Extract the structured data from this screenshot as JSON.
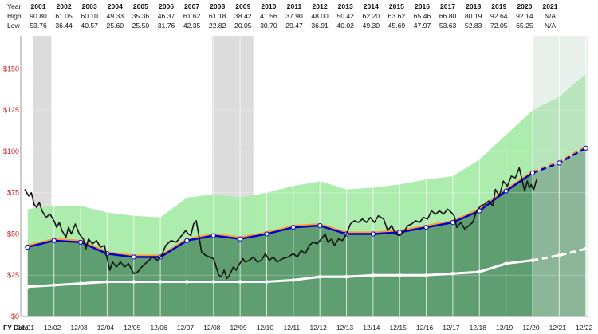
{
  "table": {
    "row_labels": [
      "Year",
      "High",
      "Low"
    ],
    "years": [
      "2001",
      "2002",
      "2003",
      "2004",
      "2005",
      "2006",
      "2007",
      "2008",
      "2009",
      "2010",
      "2011",
      "2012",
      "2013",
      "2014",
      "2015",
      "2016",
      "2017",
      "2018",
      "2019",
      "2020",
      "2021"
    ],
    "high": [
      "90.80",
      "61.05",
      "60.10",
      "49.33",
      "35.36",
      "46.37",
      "61.62",
      "61.18",
      "38.42",
      "41.56",
      "37.90",
      "48.00",
      "50.42",
      "62.20",
      "63.62",
      "65.46",
      "66.80",
      "80.19",
      "92.64",
      "92.14",
      "N/A"
    ],
    "low": [
      "53.76",
      "36.44",
      "40.57",
      "25.60",
      "25.50",
      "31.76",
      "42.35",
      "22.82",
      "20.05",
      "30.70",
      "29.47",
      "36.91",
      "40.02",
      "49.30",
      "45.69",
      "47.97",
      "53.63",
      "52.83",
      "72.05",
      "65.25",
      "N/A"
    ]
  },
  "chart_data": {
    "type": "line",
    "xlabel": "FY Date",
    "categories": [
      "12/01",
      "12/02",
      "12/03",
      "12/04",
      "12/05",
      "12/06",
      "12/07",
      "12/08",
      "12/09",
      "12/10",
      "12/11",
      "12/12",
      "12/13",
      "12/14",
      "12/15",
      "12/16",
      "12/17",
      "12/18",
      "12/19",
      "12/20",
      "12/21",
      "12/22"
    ],
    "yticks": [
      "$0",
      "$25",
      "$50",
      "$75",
      "$100",
      "$125",
      "$150"
    ],
    "ylim": [
      0,
      170
    ],
    "recession_shading": [
      [
        "2001.2",
        "2001.9"
      ],
      [
        "2007.95",
        "2009.5"
      ]
    ],
    "forecast_start": "2020.0",
    "normal_value": [
      [
        2001.0,
        42
      ],
      [
        2002.0,
        46
      ],
      [
        2003.0,
        45
      ],
      [
        2004.0,
        38
      ],
      [
        2005.0,
        36
      ],
      [
        2006.0,
        36
      ],
      [
        2007.0,
        46
      ],
      [
        2008.0,
        49
      ],
      [
        2009.0,
        47
      ],
      [
        2010.0,
        50
      ],
      [
        2011.0,
        54
      ],
      [
        2012.0,
        55
      ],
      [
        2013.0,
        50
      ],
      [
        2014.0,
        50
      ],
      [
        2015.0,
        51
      ],
      [
        2016.0,
        54
      ],
      [
        2017.0,
        57
      ],
      [
        2018.0,
        64
      ],
      [
        2019.0,
        76
      ],
      [
        2020.0,
        87
      ],
      [
        2021.0,
        93
      ],
      [
        2022.0,
        102
      ]
    ],
    "dividend_band": [
      [
        2001.0,
        18
      ],
      [
        2002.0,
        19
      ],
      [
        2003.0,
        20
      ],
      [
        2004.0,
        21
      ],
      [
        2005.0,
        21
      ],
      [
        2006.0,
        21
      ],
      [
        2007.0,
        21
      ],
      [
        2008.0,
        21
      ],
      [
        2009.0,
        21
      ],
      [
        2010.0,
        21
      ],
      [
        2011.0,
        22
      ],
      [
        2012.0,
        24
      ],
      [
        2013.0,
        24
      ],
      [
        2014.0,
        25
      ],
      [
        2015.0,
        25
      ],
      [
        2016.0,
        25
      ],
      [
        2017.0,
        26
      ],
      [
        2018.0,
        27
      ],
      [
        2019.0,
        32
      ],
      [
        2020.0,
        34
      ],
      [
        2021.0,
        37
      ],
      [
        2022.0,
        41
      ]
    ],
    "upper_band": [
      [
        2001.0,
        65
      ],
      [
        2002.0,
        67
      ],
      [
        2003.0,
        67
      ],
      [
        2004.0,
        63
      ],
      [
        2005.0,
        61
      ],
      [
        2006.0,
        60
      ],
      [
        2007.0,
        72
      ],
      [
        2008.0,
        74
      ],
      [
        2009.0,
        72
      ],
      [
        2010.0,
        75
      ],
      [
        2011.0,
        79
      ],
      [
        2012.0,
        82
      ],
      [
        2013.0,
        77
      ],
      [
        2014.0,
        78
      ],
      [
        2015.0,
        80
      ],
      [
        2016.0,
        83
      ],
      [
        2017.0,
        85
      ],
      [
        2018.0,
        95
      ],
      [
        2019.0,
        110
      ],
      [
        2020.0,
        125
      ],
      [
        2021.0,
        133
      ],
      [
        2022.0,
        147
      ]
    ],
    "price": [
      [
        2000.9,
        77
      ],
      [
        2001.05,
        73
      ],
      [
        2001.15,
        75
      ],
      [
        2001.25,
        68
      ],
      [
        2001.35,
        66
      ],
      [
        2001.45,
        69
      ],
      [
        2001.55,
        64
      ],
      [
        2001.7,
        60
      ],
      [
        2001.85,
        62
      ],
      [
        2002.0,
        58
      ],
      [
        2002.1,
        54
      ],
      [
        2002.2,
        57
      ],
      [
        2002.3,
        52
      ],
      [
        2002.45,
        48
      ],
      [
        2002.55,
        54
      ],
      [
        2002.65,
        50
      ],
      [
        2002.8,
        56
      ],
      [
        2002.95,
        50
      ],
      [
        2003.1,
        47
      ],
      [
        2003.2,
        41
      ],
      [
        2003.3,
        47
      ],
      [
        2003.45,
        44
      ],
      [
        2003.6,
        46
      ],
      [
        2003.75,
        42
      ],
      [
        2003.9,
        43
      ],
      [
        2004.0,
        35
      ],
      [
        2004.1,
        28
      ],
      [
        2004.2,
        33
      ],
      [
        2004.35,
        30
      ],
      [
        2004.5,
        33
      ],
      [
        2004.65,
        30
      ],
      [
        2004.8,
        32
      ],
      [
        2005.0,
        26
      ],
      [
        2005.15,
        27
      ],
      [
        2005.3,
        30
      ],
      [
        2005.5,
        33
      ],
      [
        2005.7,
        36
      ],
      [
        2005.9,
        34
      ],
      [
        2006.05,
        37
      ],
      [
        2006.2,
        43
      ],
      [
        2006.4,
        46
      ],
      [
        2006.6,
        45
      ],
      [
        2006.8,
        49
      ],
      [
        2006.95,
        52
      ],
      [
        2007.05,
        50
      ],
      [
        2007.15,
        49
      ],
      [
        2007.25,
        56
      ],
      [
        2007.35,
        58
      ],
      [
        2007.45,
        49
      ],
      [
        2007.55,
        39
      ],
      [
        2007.7,
        37
      ],
      [
        2007.85,
        36
      ],
      [
        2008.0,
        35
      ],
      [
        2008.1,
        30
      ],
      [
        2008.2,
        25
      ],
      [
        2008.3,
        24
      ],
      [
        2008.4,
        28
      ],
      [
        2008.5,
        23
      ],
      [
        2008.6,
        25
      ],
      [
        2008.75,
        30
      ],
      [
        2008.85,
        28
      ],
      [
        2008.95,
        31
      ],
      [
        2009.1,
        35
      ],
      [
        2009.2,
        33
      ],
      [
        2009.35,
        34
      ],
      [
        2009.5,
        36
      ],
      [
        2009.65,
        33
      ],
      [
        2009.8,
        34
      ],
      [
        2009.95,
        38
      ],
      [
        2010.1,
        34
      ],
      [
        2010.25,
        36
      ],
      [
        2010.4,
        33
      ],
      [
        2010.6,
        35
      ],
      [
        2010.8,
        36
      ],
      [
        2011.0,
        38
      ],
      [
        2011.15,
        36
      ],
      [
        2011.3,
        40
      ],
      [
        2011.45,
        38
      ],
      [
        2011.6,
        43
      ],
      [
        2011.75,
        45
      ],
      [
        2011.9,
        44
      ],
      [
        2012.05,
        47
      ],
      [
        2012.2,
        50
      ],
      [
        2012.3,
        45
      ],
      [
        2012.45,
        47
      ],
      [
        2012.55,
        43
      ],
      [
        2012.7,
        47
      ],
      [
        2012.85,
        46
      ],
      [
        2013.0,
        50
      ],
      [
        2013.15,
        56
      ],
      [
        2013.3,
        58
      ],
      [
        2013.45,
        57
      ],
      [
        2013.6,
        59
      ],
      [
        2013.75,
        57
      ],
      [
        2013.9,
        60
      ],
      [
        2014.05,
        57
      ],
      [
        2014.2,
        61
      ],
      [
        2014.4,
        59
      ],
      [
        2014.55,
        52
      ],
      [
        2014.7,
        55
      ],
      [
        2014.85,
        50
      ],
      [
        2015.0,
        49
      ],
      [
        2015.15,
        51
      ],
      [
        2015.3,
        55
      ],
      [
        2015.45,
        56
      ],
      [
        2015.6,
        58
      ],
      [
        2015.75,
        57
      ],
      [
        2015.9,
        60
      ],
      [
        2016.05,
        59
      ],
      [
        2016.2,
        64
      ],
      [
        2016.35,
        62
      ],
      [
        2016.5,
        64
      ],
      [
        2016.65,
        62
      ],
      [
        2016.8,
        65
      ],
      [
        2016.95,
        63
      ],
      [
        2017.05,
        61
      ],
      [
        2017.15,
        54
      ],
      [
        2017.3,
        57
      ],
      [
        2017.45,
        53
      ],
      [
        2017.6,
        55
      ],
      [
        2017.75,
        57
      ],
      [
        2017.9,
        64
      ],
      [
        2018.05,
        67
      ],
      [
        2018.2,
        68
      ],
      [
        2018.35,
        70
      ],
      [
        2018.5,
        67
      ],
      [
        2018.6,
        77
      ],
      [
        2018.75,
        73
      ],
      [
        2018.9,
        82
      ],
      [
        2019.05,
        79
      ],
      [
        2019.2,
        85
      ],
      [
        2019.35,
        84
      ],
      [
        2019.5,
        90
      ],
      [
        2019.6,
        83
      ],
      [
        2019.7,
        76
      ],
      [
        2019.8,
        82
      ],
      [
        2019.88,
        78
      ],
      [
        2019.95,
        80
      ],
      [
        2020.0,
        78
      ],
      [
        2020.05,
        77
      ],
      [
        2020.15,
        83
      ]
    ]
  },
  "colors": {
    "upper_fill": "#a8ecaa",
    "lower_fill": "#5f9e70",
    "forecast_overlay": "#c8dcd0",
    "recession": "#dcdcdc",
    "price": "#111111",
    "normal_value": "#0000cc",
    "normal_value_outline": "#ff9933",
    "dividend": "#ffffff",
    "axis_label": "#cc2222"
  }
}
